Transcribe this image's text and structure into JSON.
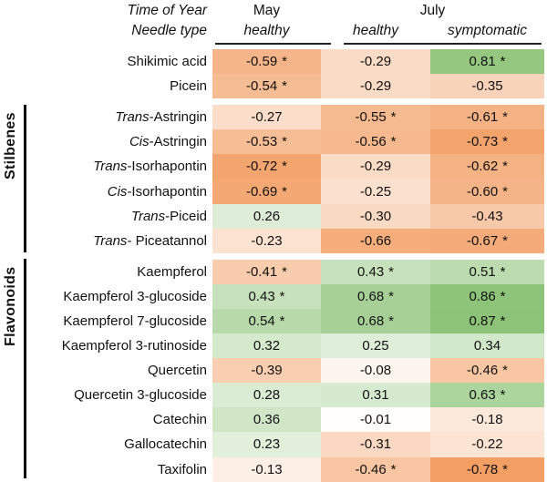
{
  "header": {
    "row1_label": "Time of Year",
    "row2_label": "Needle type",
    "may_label": "May",
    "july_label": "July",
    "may_sub_label": "healthy",
    "july_sub_healthy_label": "healthy",
    "july_sub_symptomatic_label": "symptomatic"
  },
  "colors": {
    "negative_end": "#EF8237",
    "positive_end": "#7CBA64",
    "midpoint": "#FFFFFF",
    "group_bar": "#000000",
    "underline": "#222222"
  },
  "chart_data": {
    "type": "heatmap",
    "title": "",
    "value_range": [
      -1,
      1
    ],
    "grid": false,
    "columns": [
      {
        "time_of_year": "May",
        "needle_type": "healthy"
      },
      {
        "time_of_year": "July",
        "needle_type": "healthy"
      },
      {
        "time_of_year": "July",
        "needle_type": "symptomatic"
      }
    ],
    "row_groups": [
      {
        "label": "",
        "rows": [
          {
            "name_italic": "",
            "name": "Shikimic acid",
            "labels": [
              "-0.59",
              "-0.29",
              "0.81"
            ],
            "values": [
              -0.59,
              -0.29,
              0.81
            ],
            "significant": [
              true,
              false,
              true
            ]
          },
          {
            "name_italic": "",
            "name": "Picein",
            "labels": [
              "-0.54",
              "-0.29",
              "-0.35"
            ],
            "values": [
              -0.54,
              -0.29,
              -0.35
            ],
            "significant": [
              true,
              false,
              false
            ]
          }
        ]
      },
      {
        "label": "Stilbenes",
        "rows": [
          {
            "name_italic": "Trans",
            "name": "-Astringin",
            "labels": [
              "-0.27",
              "-0.55",
              "-0.61"
            ],
            "values": [
              -0.27,
              -0.55,
              -0.61
            ],
            "significant": [
              false,
              true,
              true
            ]
          },
          {
            "name_italic": "Cis",
            "name": "-Astringin",
            "labels": [
              "-0.53",
              "-0.56",
              "-0.73"
            ],
            "values": [
              -0.53,
              -0.56,
              -0.73
            ],
            "significant": [
              true,
              true,
              true
            ]
          },
          {
            "name_italic": "Trans",
            "name": "-Isorhapontin",
            "labels": [
              "-0.72",
              "-0.29",
              "-0.62"
            ],
            "values": [
              -0.72,
              -0.29,
              -0.62
            ],
            "significant": [
              true,
              false,
              true
            ]
          },
          {
            "name_italic": "Cis",
            "name": "-Isorhapontin",
            "labels": [
              "-0.69",
              "-0.25",
              "-0.60"
            ],
            "values": [
              -0.69,
              -0.25,
              -0.6
            ],
            "significant": [
              true,
              false,
              true
            ]
          },
          {
            "name_italic": "Trans",
            "name": "-Piceid",
            "labels": [
              "0.26",
              "-0.30",
              "-0.43"
            ],
            "values": [
              0.26,
              -0.3,
              -0.43
            ],
            "significant": [
              false,
              false,
              false
            ]
          },
          {
            "name_italic": "Trans",
            "name": "- Piceatannol",
            "labels": [
              "-0.23",
              "-0.66",
              "-0.67"
            ],
            "values": [
              -0.23,
              -0.66,
              -0.67
            ],
            "significant": [
              false,
              false,
              true
            ]
          }
        ]
      },
      {
        "label": "Flavonoids",
        "rows": [
          {
            "name_italic": "",
            "name": "Kaempferol",
            "labels": [
              "-0.41",
              "0.43",
              "0.51"
            ],
            "values": [
              -0.41,
              0.43,
              0.51
            ],
            "significant": [
              true,
              true,
              true
            ]
          },
          {
            "name_italic": "",
            "name": "Kaempferol 3-glucoside",
            "labels": [
              "0.43",
              "0.68",
              "0.86"
            ],
            "values": [
              0.43,
              0.68,
              0.86
            ],
            "significant": [
              true,
              true,
              true
            ]
          },
          {
            "name_italic": "",
            "name": "Kaempferol 7-glucoside",
            "labels": [
              "0.54",
              "0.68",
              "0.87"
            ],
            "values": [
              0.54,
              0.68,
              0.87
            ],
            "significant": [
              true,
              true,
              true
            ]
          },
          {
            "name_italic": "",
            "name": "Kaempferol 3-rutinoside",
            "labels": [
              "0.32",
              "0.25",
              "0.34"
            ],
            "values": [
              0.32,
              0.25,
              0.34
            ],
            "significant": [
              false,
              false,
              false
            ]
          },
          {
            "name_italic": "",
            "name": "Quercetin",
            "labels": [
              "-0.39",
              "-0.08",
              "-0.46"
            ],
            "values": [
              -0.39,
              -0.08,
              -0.46
            ],
            "significant": [
              false,
              false,
              true
            ]
          },
          {
            "name_italic": "",
            "name": "Quercetin 3-glucoside",
            "labels": [
              "0.28",
              "0.31",
              "0.63"
            ],
            "values": [
              0.28,
              0.31,
              0.63
            ],
            "significant": [
              false,
              false,
              true
            ]
          },
          {
            "name_italic": "",
            "name": "Catechin",
            "labels": [
              "0.36",
              "-0.01",
              "-0.18"
            ],
            "values": [
              0.36,
              -0.01,
              -0.18
            ],
            "significant": [
              false,
              false,
              false
            ]
          },
          {
            "name_italic": "",
            "name": "Gallocatechin",
            "labels": [
              "0.23",
              "-0.31",
              "-0.22"
            ],
            "values": [
              0.23,
              -0.31,
              -0.22
            ],
            "significant": [
              false,
              false,
              false
            ]
          },
          {
            "name_italic": "",
            "name": "Taxifolin",
            "labels": [
              "-0.13",
              "-0.46",
              "-0.78"
            ],
            "values": [
              -0.13,
              -0.46,
              -0.78
            ],
            "significant": [
              false,
              true,
              true
            ]
          }
        ]
      }
    ]
  }
}
